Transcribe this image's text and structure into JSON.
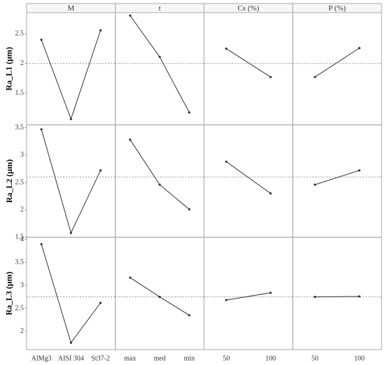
{
  "chart_data": {
    "type": "line",
    "color": "#333333",
    "reference_color": "#7f9f9f",
    "columns": [
      {
        "title": "M",
        "categories": [
          "AlMg3",
          "AISI 304",
          "St37-2"
        ]
      },
      {
        "title": "t",
        "categories": [
          "max",
          "med",
          "min"
        ]
      },
      {
        "title": "Cs (%)",
        "categories": [
          "50",
          "100"
        ]
      },
      {
        "title": "P (%)",
        "categories": [
          "50",
          "100"
        ]
      }
    ],
    "rows": [
      {
        "ylabel": "Ra_L1 (μm)",
        "ylim": [
          0.96,
          2.86
        ],
        "yticks": [
          1.5,
          2.0,
          2.5
        ],
        "reference": 2.0,
        "series": [
          {
            "values": [
              2.4,
              1.06,
              2.56
            ]
          },
          {
            "values": [
              2.81,
              2.11,
              1.17
            ]
          },
          {
            "values": [
              2.25,
              1.77
            ]
          },
          {
            "values": [
              1.77,
              2.26
            ]
          }
        ]
      },
      {
        "ylabel": "Ra_L2 (μm)",
        "ylim": [
          1.5,
          3.55
        ],
        "yticks": [
          1.5,
          2.0,
          2.5,
          3.0,
          3.5
        ],
        "reference": 2.6,
        "series": [
          {
            "values": [
              3.47,
              1.58,
              2.72
            ]
          },
          {
            "values": [
              3.28,
              2.46,
              2.01
            ]
          },
          {
            "values": [
              2.88,
              2.3
            ]
          },
          {
            "values": [
              2.46,
              2.72
            ]
          }
        ]
      },
      {
        "ylabel": "Ra_L3 (μm)",
        "ylim": [
          1.6,
          4.05
        ],
        "yticks": [
          2.0,
          2.5,
          3.0,
          3.5,
          4.0
        ],
        "reference": 2.75,
        "series": [
          {
            "values": [
              3.9,
              1.75,
              2.62
            ]
          },
          {
            "values": [
              3.17,
              2.75,
              2.35
            ]
          },
          {
            "values": [
              2.68,
              2.84
            ]
          },
          {
            "values": [
              2.75,
              2.76
            ]
          }
        ]
      }
    ]
  }
}
